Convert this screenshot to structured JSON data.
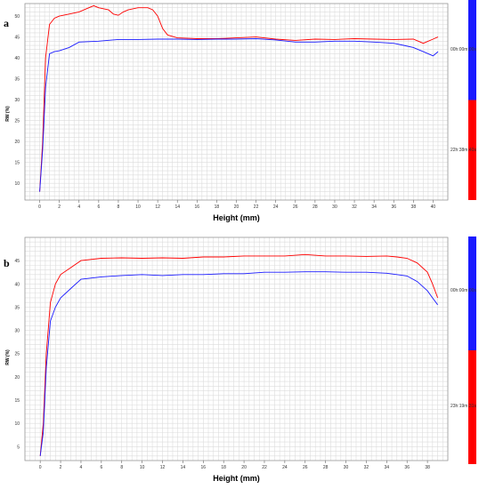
{
  "chart_data": [
    {
      "type": "line",
      "panel_label": "a",
      "xlabel": "Height (mm)",
      "ylabel": "RW (%)",
      "xlim": [
        -1.5,
        41.5
      ],
      "ylim": [
        6,
        53
      ],
      "x_ticks": [
        0,
        2,
        4,
        6,
        8,
        10,
        12,
        14,
        16,
        18,
        20,
        22,
        24,
        26,
        28,
        30,
        32,
        34,
        36,
        38,
        40
      ],
      "y_ticks": [
        10,
        15,
        20,
        25,
        30,
        35,
        40,
        45,
        50
      ],
      "grid": true,
      "legend_placement": "right",
      "series": [
        {
          "name": "00h:00m:00s",
          "color": "#ff0000",
          "points": [
            [
              0,
              8
            ],
            [
              0.3,
              20
            ],
            [
              0.6,
              40
            ],
            [
              1,
              48
            ],
            [
              1.5,
              49.5
            ],
            [
              2,
              50
            ],
            [
              3,
              50.5
            ],
            [
              4,
              51
            ],
            [
              5,
              52
            ],
            [
              5.5,
              52.5
            ],
            [
              6,
              52
            ],
            [
              7,
              51.5
            ],
            [
              7.5,
              50.5
            ],
            [
              8,
              50.2
            ],
            [
              8.5,
              51
            ],
            [
              9,
              51.5
            ],
            [
              10,
              52
            ],
            [
              11,
              52
            ],
            [
              11.5,
              51.5
            ],
            [
              12,
              50
            ],
            [
              12.5,
              47
            ],
            [
              13,
              45.5
            ],
            [
              14,
              44.8
            ],
            [
              16,
              44.6
            ],
            [
              18,
              44.6
            ],
            [
              20,
              44.8
            ],
            [
              22,
              45
            ],
            [
              24,
              44.5
            ],
            [
              26,
              44.2
            ],
            [
              28,
              44.5
            ],
            [
              30,
              44.4
            ],
            [
              32,
              44.6
            ],
            [
              34,
              44.5
            ],
            [
              36,
              44.4
            ],
            [
              38,
              44.5
            ],
            [
              39,
              43.5
            ],
            [
              40,
              44.5
            ],
            [
              40.5,
              45
            ]
          ]
        },
        {
          "name": "22h:38m:40s",
          "color": "#1a1aff",
          "points": [
            [
              0,
              8
            ],
            [
              0.3,
              18
            ],
            [
              0.6,
              33
            ],
            [
              1,
              41
            ],
            [
              1.5,
              41.5
            ],
            [
              2,
              41.7
            ],
            [
              3,
              42.5
            ],
            [
              4,
              43.8
            ],
            [
              6,
              44
            ],
            [
              8,
              44.4
            ],
            [
              10,
              44.4
            ],
            [
              12,
              44.5
            ],
            [
              14,
              44.5
            ],
            [
              16,
              44.4
            ],
            [
              18,
              44.5
            ],
            [
              20,
              44.5
            ],
            [
              22,
              44.6
            ],
            [
              24,
              44.3
            ],
            [
              26,
              43.8
            ],
            [
              28,
              43.8
            ],
            [
              30,
              44
            ],
            [
              32,
              44
            ],
            [
              34,
              43.8
            ],
            [
              36,
              43.5
            ],
            [
              37,
              43
            ],
            [
              38,
              42.5
            ],
            [
              39,
              41.5
            ],
            [
              40,
              40.5
            ],
            [
              40.5,
              41.5
            ]
          ]
        }
      ]
    },
    {
      "type": "line",
      "panel_label": "b",
      "xlabel": "Height (mm)",
      "ylabel": "RW (%)",
      "xlim": [
        -1.5,
        40
      ],
      "ylim": [
        2,
        50
      ],
      "x_ticks": [
        0,
        2,
        4,
        6,
        8,
        10,
        12,
        14,
        16,
        18,
        20,
        22,
        24,
        26,
        28,
        30,
        32,
        34,
        36,
        38
      ],
      "y_ticks": [
        5,
        10,
        15,
        20,
        25,
        30,
        35,
        40,
        45
      ],
      "grid": true,
      "legend_placement": "right",
      "series": [
        {
          "name": "00h:00m:00s",
          "color": "#ff0000",
          "points": [
            [
              0,
              3
            ],
            [
              0.3,
              10
            ],
            [
              0.6,
              25
            ],
            [
              1,
              36
            ],
            [
              1.5,
              40
            ],
            [
              2,
              42
            ],
            [
              3,
              43.5
            ],
            [
              4,
              45
            ],
            [
              6,
              45.5
            ],
            [
              8,
              45.6
            ],
            [
              10,
              45.5
            ],
            [
              12,
              45.6
            ],
            [
              14,
              45.5
            ],
            [
              16,
              45.8
            ],
            [
              18,
              45.8
            ],
            [
              20,
              46
            ],
            [
              22,
              46
            ],
            [
              24,
              46
            ],
            [
              26,
              46.3
            ],
            [
              28,
              46
            ],
            [
              30,
              46
            ],
            [
              32,
              45.9
            ],
            [
              34,
              46
            ],
            [
              35,
              45.8
            ],
            [
              36,
              45.5
            ],
            [
              37,
              44.5
            ],
            [
              38,
              42.5
            ],
            [
              38.5,
              40
            ],
            [
              39,
              37
            ]
          ]
        },
        {
          "name": "23h:19m:31s",
          "color": "#1a1aff",
          "points": [
            [
              0,
              3
            ],
            [
              0.3,
              8
            ],
            [
              0.6,
              22
            ],
            [
              1,
              32
            ],
            [
              1.5,
              35
            ],
            [
              2,
              37
            ],
            [
              3,
              39
            ],
            [
              4,
              41
            ],
            [
              6,
              41.5
            ],
            [
              8,
              41.8
            ],
            [
              10,
              42
            ],
            [
              12,
              41.8
            ],
            [
              14,
              42
            ],
            [
              16,
              42
            ],
            [
              18,
              42.2
            ],
            [
              20,
              42.2
            ],
            [
              22,
              42.5
            ],
            [
              24,
              42.5
            ],
            [
              26,
              42.6
            ],
            [
              28,
              42.6
            ],
            [
              30,
              42.5
            ],
            [
              32,
              42.5
            ],
            [
              34,
              42.3
            ],
            [
              35,
              42
            ],
            [
              36,
              41.7
            ],
            [
              37,
              40.5
            ],
            [
              38,
              38.5
            ],
            [
              38.5,
              37
            ],
            [
              39,
              35.5
            ]
          ]
        }
      ]
    }
  ]
}
